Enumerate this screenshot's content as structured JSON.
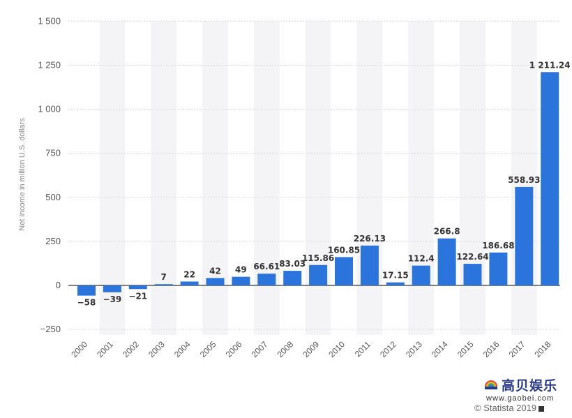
{
  "chart_data": {
    "type": "bar",
    "title": "",
    "xlabel": "",
    "ylabel": "Net income in million U.S. dollars",
    "categories": [
      "2000",
      "2001",
      "2002",
      "2003",
      "2004",
      "2005",
      "2006",
      "2007",
      "2008",
      "2009",
      "2010",
      "2011",
      "2012",
      "2013",
      "2014",
      "2015",
      "2016",
      "2017",
      "2018"
    ],
    "values": [
      -58,
      -39,
      -21,
      7,
      22,
      42,
      49,
      66.61,
      83.03,
      115.86,
      160.85,
      226.13,
      17.15,
      112.4,
      266.8,
      122.64,
      186.68,
      558.93,
      1211.24
    ],
    "data_labels": [
      "−58",
      "−39",
      "−21",
      "7",
      "22",
      "42",
      "49",
      "66.61",
      "83.03",
      "115.86",
      "160.85",
      "226.13",
      "17.15",
      "112.4",
      "266.8",
      "122.64",
      "186.68",
      "558.93",
      "1 211.24"
    ],
    "y_ticks": [
      -250,
      0,
      250,
      500,
      750,
      1000,
      1250,
      1500
    ],
    "y_tick_labels": [
      "−250",
      "0",
      "250",
      "500",
      "750",
      "1 000",
      "1 250",
      "1 500"
    ],
    "ylim": [
      -250,
      1500
    ],
    "grid": true,
    "bar_color": "#2b74db",
    "stripe_color": "#f4f4f6"
  },
  "watermark": {
    "title": "高贝娱乐",
    "url": "www.gaobei.com"
  },
  "copyright": "© Statista 2019"
}
